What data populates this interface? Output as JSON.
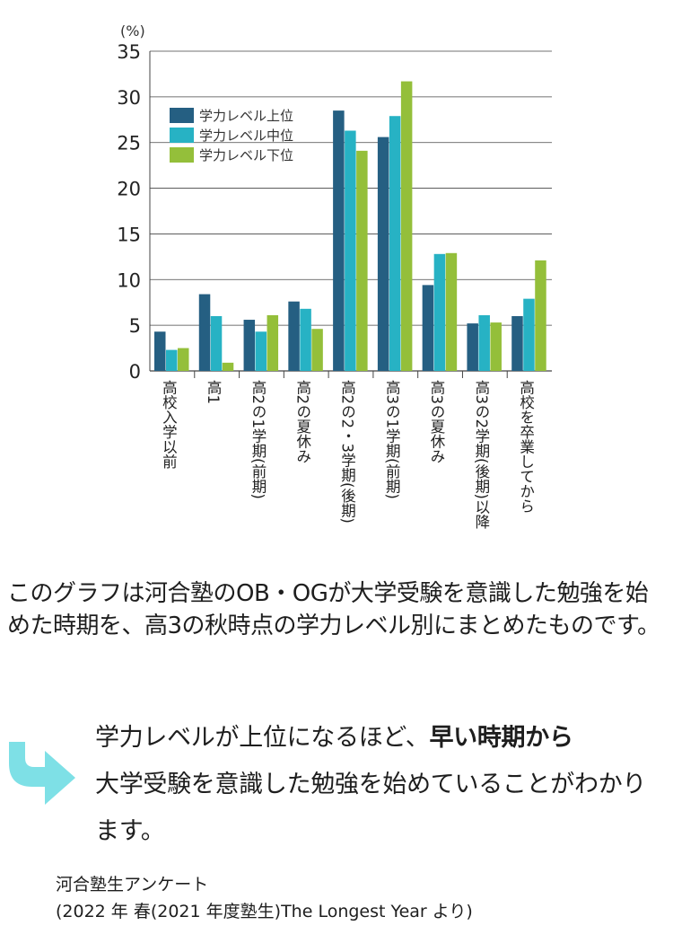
{
  "chart_data": {
    "type": "bar",
    "unit_label": "(%)",
    "ylim": [
      0,
      35
    ],
    "yticks": [
      0,
      5,
      10,
      15,
      20,
      25,
      30,
      35
    ],
    "grid": true,
    "legend_position": "top-left",
    "categories": [
      "高校入学以前",
      "高1",
      "高2の1学期(前期)",
      "高2の夏休み",
      "高2の2・3学期(後期)",
      "高3の1学期(前期)",
      "高3の夏休み",
      "高3の2学期(後期)以降",
      "高校を卒業してから"
    ],
    "series": [
      {
        "name": "学力レベル上位",
        "color": "#255f82",
        "values": [
          4.3,
          8.4,
          5.6,
          7.6,
          28.5,
          25.6,
          9.4,
          5.2,
          6.0
        ]
      },
      {
        "name": "学力レベル中位",
        "color": "#27b2c4",
        "values": [
          2.3,
          6.0,
          4.3,
          6.8,
          26.3,
          27.9,
          12.8,
          6.1,
          7.9
        ]
      },
      {
        "name": "学力レベル下位",
        "color": "#94bf3a",
        "values": [
          2.5,
          0.9,
          6.1,
          4.6,
          24.1,
          31.7,
          12.9,
          5.3,
          12.1
        ]
      }
    ]
  },
  "description": "このグラフは河合塾のOB・OGが大学受験を意識した勉強を始めた時期を、高3の秋時点の学力レベル別にまとめたものです。",
  "takeaway": {
    "before": "学力レベルが上位になるほど、",
    "emphasis": "早い時期から",
    "after": "大学受験を意識した勉強を始めていることがわかります。"
  },
  "source": {
    "line1": "河合塾生アンケート",
    "line2": "(2022 年 春(2021 年度塾生)The Longest Year より)"
  },
  "colors": {
    "arrow": "#7ee0e6",
    "grid": "#444444",
    "text": "#1e1e1e"
  }
}
